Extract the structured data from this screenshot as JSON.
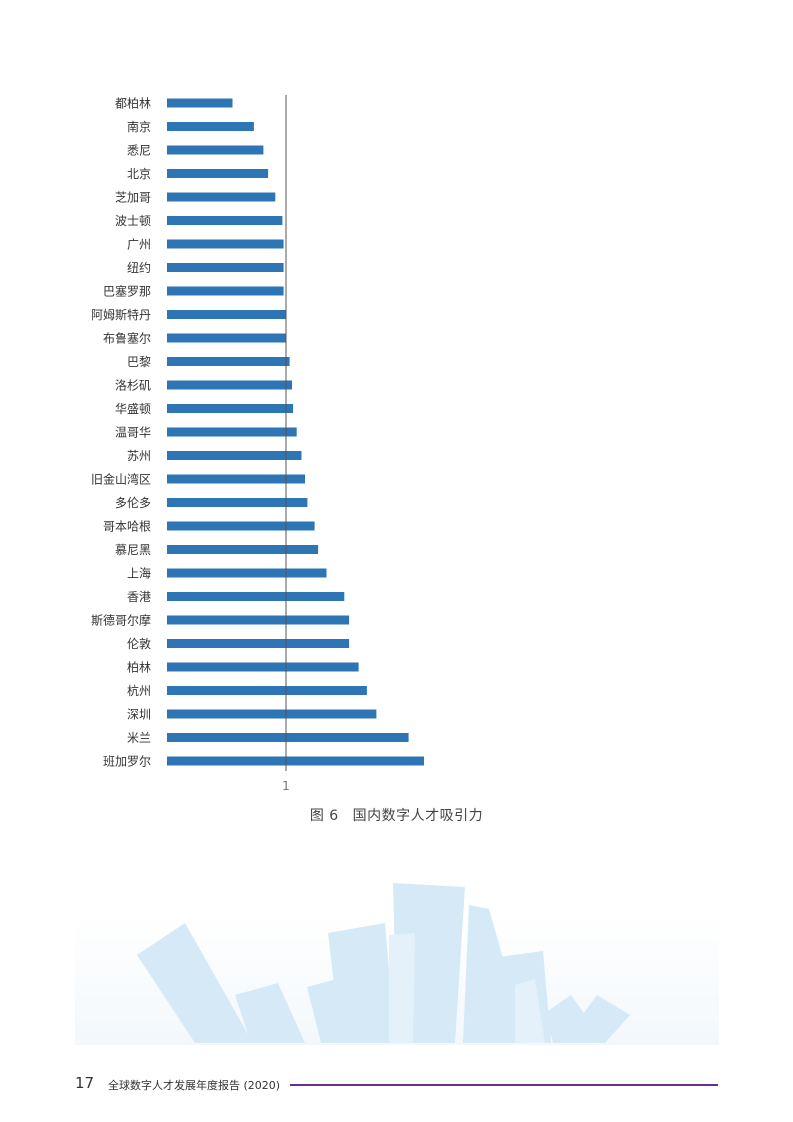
{
  "chart_data": {
    "type": "bar",
    "orientation": "horizontal",
    "categories": [
      "都柏林",
      "南京",
      "悉尼",
      "北京",
      "芝加哥",
      "波士顿",
      "广州",
      "纽约",
      "巴塞罗那",
      "阿姆斯特丹",
      "布鲁塞尔",
      "巴黎",
      "洛杉矶",
      "华盛顿",
      "温哥华",
      "苏州",
      "旧金山湾区",
      "多伦多",
      "哥本哈根",
      "慕尼黑",
      "上海",
      "香港",
      "斯德哥尔摩",
      "伦敦",
      "柏林",
      "杭州",
      "深圳",
      "米兰",
      "班加罗尔"
    ],
    "values": [
      0.55,
      0.73,
      0.81,
      0.85,
      0.91,
      0.97,
      0.98,
      0.98,
      0.98,
      1.0,
      1.0,
      1.03,
      1.05,
      1.06,
      1.09,
      1.13,
      1.16,
      1.18,
      1.24,
      1.27,
      1.34,
      1.49,
      1.53,
      1.53,
      1.61,
      1.68,
      1.76,
      2.03,
      2.16
    ],
    "reference_line": 1,
    "x_ticks": [
      "1"
    ],
    "xlim": [
      0,
      2.5
    ],
    "bar_color": "#2e75b6",
    "grid": false,
    "legend": "none"
  },
  "caption": {
    "figure_no": "图 6",
    "text": "国内数字人才吸引力"
  },
  "footer": {
    "page_number": "17",
    "report_title": "全球数字人才发展年度报告 (2020)",
    "rule_color": "#6b2f8e"
  },
  "decoration": {
    "color": "#d5e9f7"
  }
}
